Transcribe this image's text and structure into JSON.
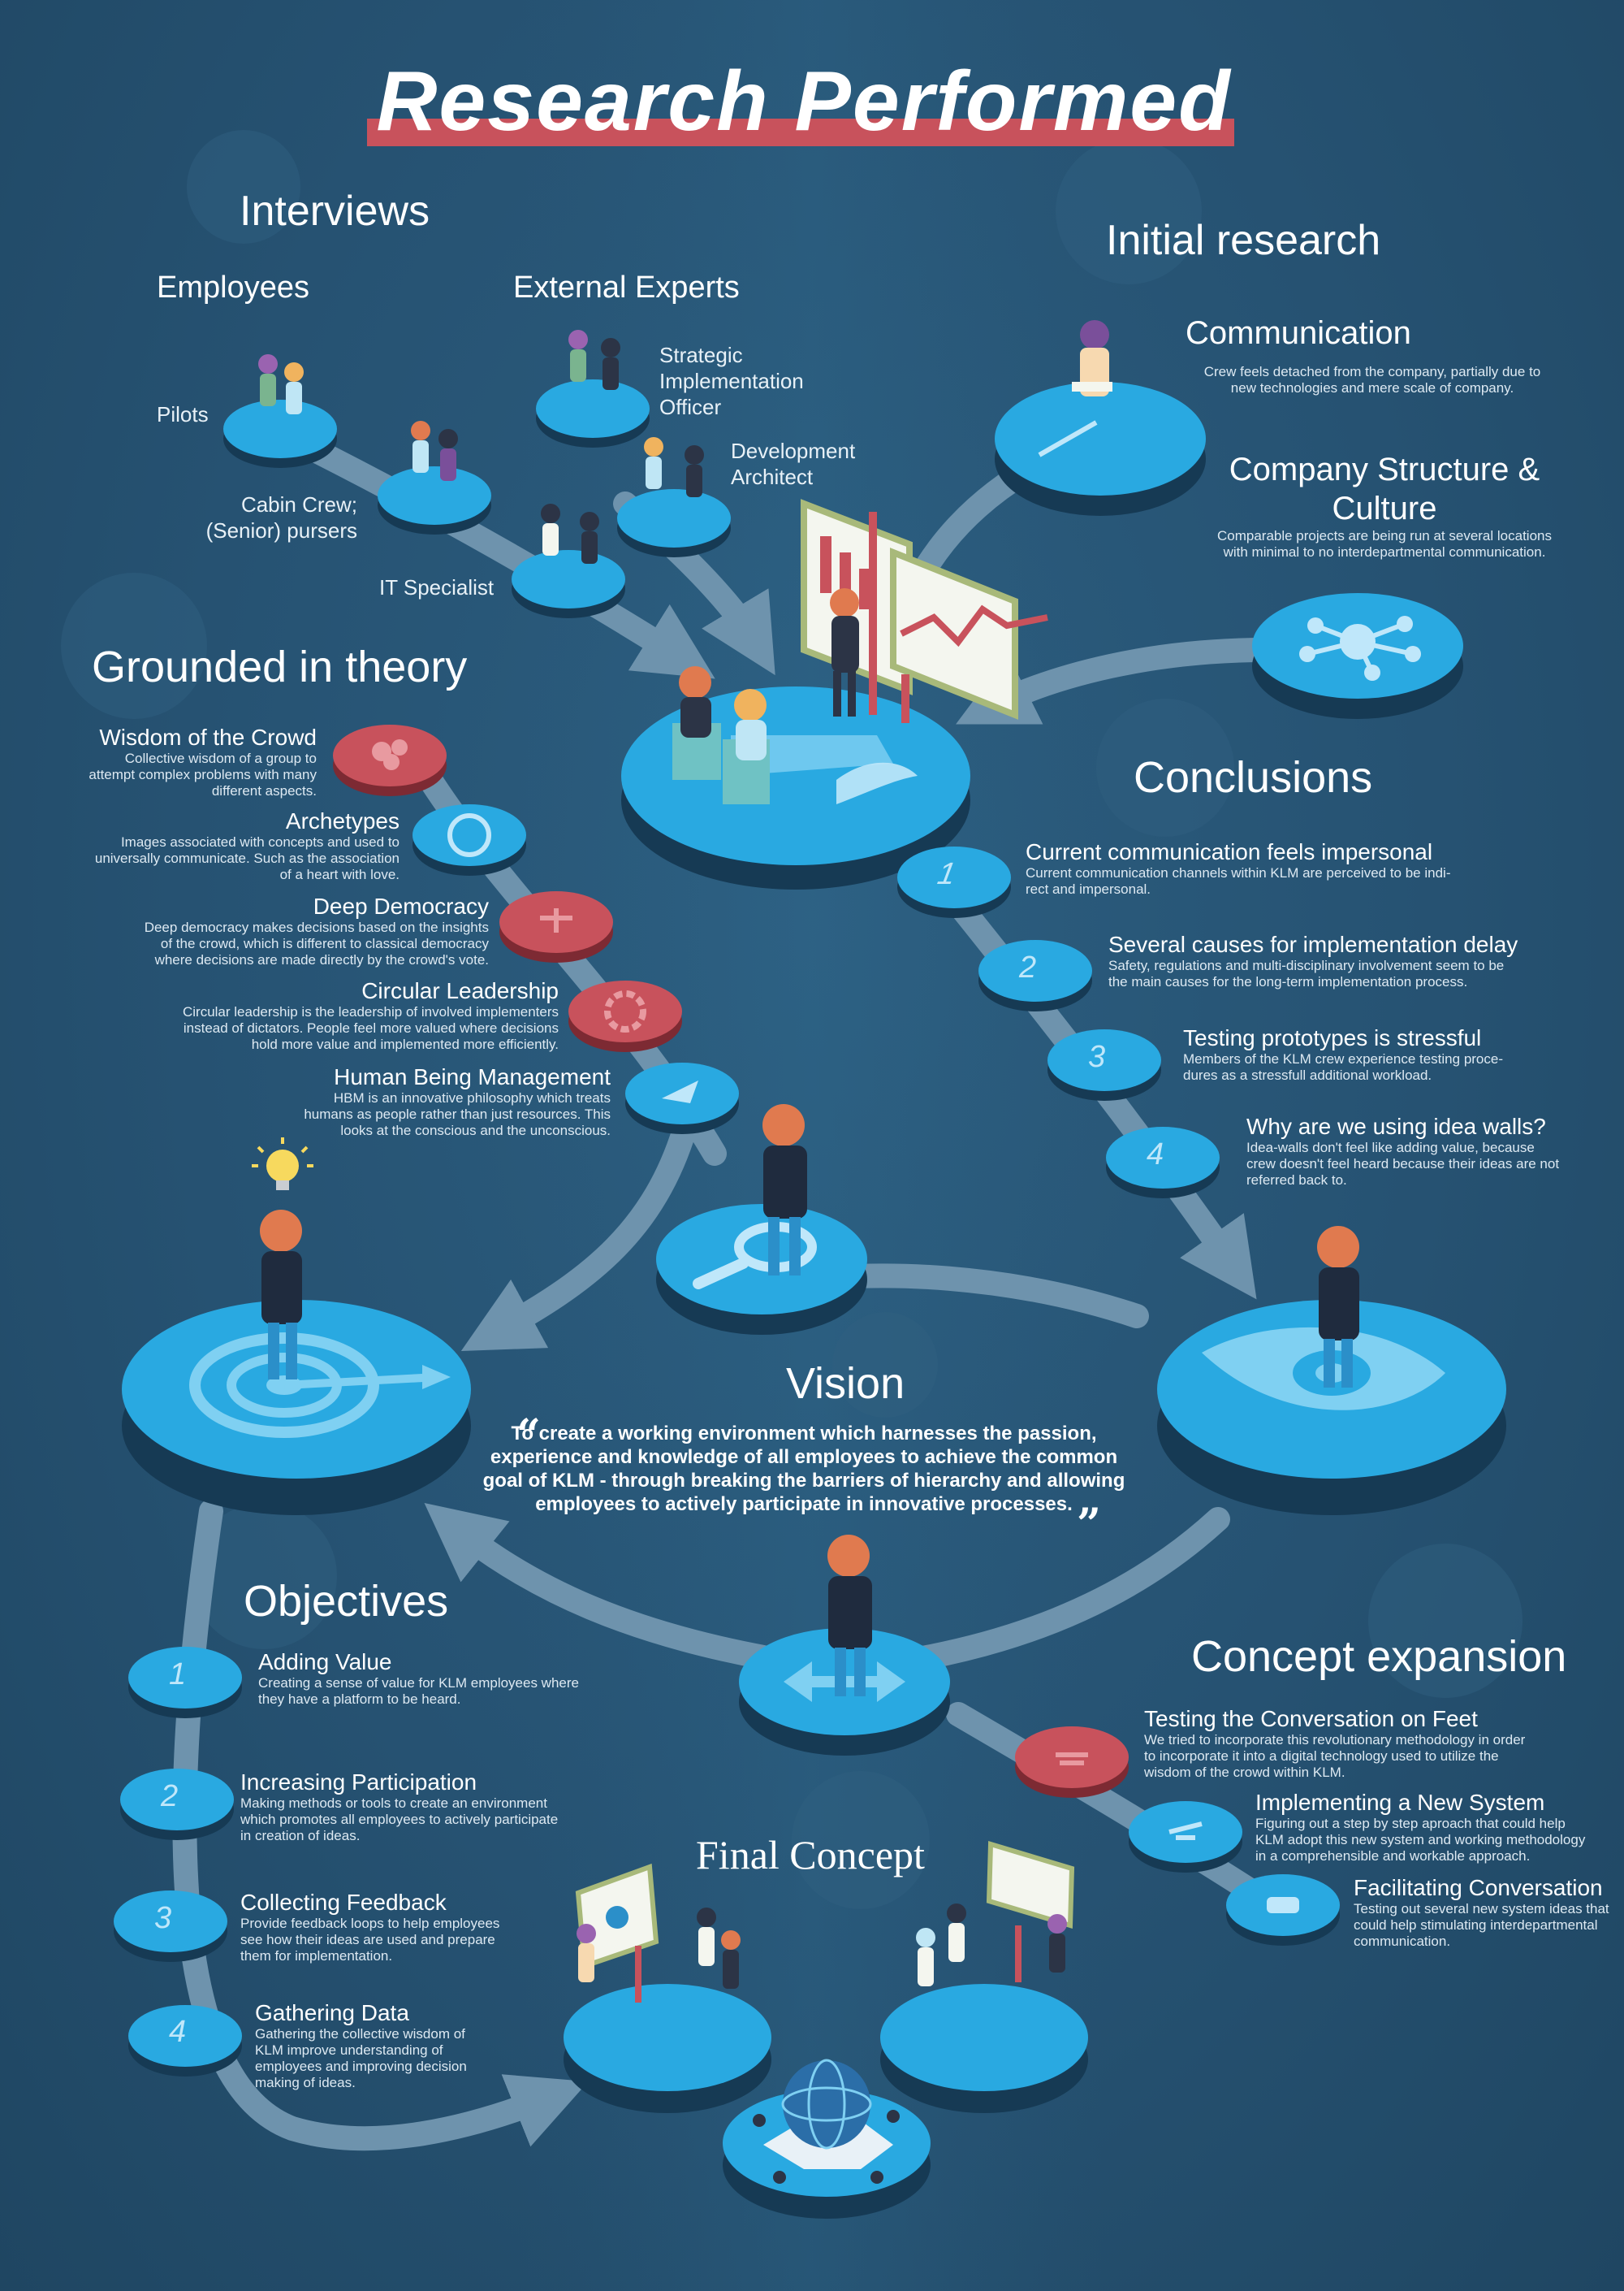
{
  "title": "Research Performed",
  "colors": {
    "background": "#275474",
    "platform": "#29a9e1",
    "platform_dark": "#1c7fb4",
    "accent_red": "#c8525c",
    "arrow": "#6e93ad"
  },
  "interviews": {
    "heading": "Interviews",
    "employees_heading": "Employees",
    "external_heading": "External Experts",
    "employees": [
      "Pilots",
      "Cabin Crew;",
      "(Senior) pursers",
      "IT Specialist"
    ],
    "external": [
      "Strategic",
      "Implementation",
      "Officer",
      "Development",
      "Architect"
    ]
  },
  "initial_research": {
    "heading": "Initial research",
    "items": [
      {
        "title": "Communication",
        "text": [
          "Crew feels detached from the company, partially due to",
          "new technologies and mere scale of company."
        ]
      },
      {
        "title": [
          "Company Structure &",
          "Culture"
        ],
        "text": [
          "Comparable projects are being run at several locations",
          "with minimal to no interdepartmental communication."
        ]
      }
    ]
  },
  "grounded": {
    "heading": "Grounded in theory",
    "items": [
      {
        "title": "Wisdom of the Crowd",
        "text": [
          "Collective wisdom of a group to",
          "attempt complex problems with many",
          "different aspects."
        ]
      },
      {
        "title": "Archetypes",
        "text": [
          "Images associated with concepts and used to",
          "universally communicate. Such as the association",
          "of a heart with love."
        ]
      },
      {
        "title": "Deep Democracy",
        "text": [
          "Deep democracy makes decisions based on the insights",
          "of the crowd, which is different to classical democracy",
          "where decisions are made directly by the crowd's vote."
        ]
      },
      {
        "title": "Circular Leadership",
        "text": [
          "Circular leadership is the leadership of involved implementers",
          "instead of dictators. People feel more valued where decisions",
          "hold more value and implemented more efficiently."
        ]
      },
      {
        "title": "Human Being Management",
        "text": [
          "HBM is an innovative philosophy which treats",
          "humans as people rather than just resources. This",
          "looks at the conscious and the unconscious."
        ]
      }
    ]
  },
  "conclusions": {
    "heading": "Conclusions",
    "items": [
      {
        "num": "1",
        "title": "Current communication feels impersonal",
        "text": [
          "Current communication channels within KLM are perceived to be indi-",
          "rect and impersonal."
        ]
      },
      {
        "num": "2",
        "title": "Several causes for implementation delay",
        "text": [
          "Safety, regulations and multi-disciplinary involvement seem to be",
          "the main causes for the long-term implementation process."
        ]
      },
      {
        "num": "3",
        "title": "Testing prototypes is stressful",
        "text": [
          "Members of the KLM crew experience testing proce-",
          "dures as a stressfull additional workload."
        ]
      },
      {
        "num": "4",
        "title": "Why are we using idea walls?",
        "text": [
          "Idea-walls don't feel like adding value, because",
          "crew doesn't feel heard because their ideas are not",
          "referred back to."
        ]
      }
    ]
  },
  "vision": {
    "heading": "Vision",
    "lines": [
      "To create a working environment which harnesses the passion,",
      "experience and knowledge of all employees to achieve the common",
      "goal of KLM - through breaking the barriers of hierarchy and allowing",
      "employees to actively participate in innovative processes."
    ],
    "open_quote": "“",
    "close_quote": "”"
  },
  "objectives": {
    "heading": "Objectives",
    "items": [
      {
        "num": "1",
        "title": "Adding Value",
        "text": [
          "Creating a sense of value for KLM employees where",
          "they have a platform to be heard."
        ]
      },
      {
        "num": "2",
        "title": "Increasing Participation",
        "text": [
          "Making methods or tools to create an environment",
          "which promotes all employees to actively participate",
          "in creation of ideas."
        ]
      },
      {
        "num": "3",
        "title": "Collecting Feedback",
        "text": [
          "Provide feedback loops to help employees",
          "see how their ideas are used and prepare",
          "them for implementation."
        ]
      },
      {
        "num": "4",
        "title": "Gathering Data",
        "text": [
          "Gathering the collective wisdom of",
          "KLM improve understanding of",
          "employees and improving decision",
          "making of ideas."
        ]
      }
    ]
  },
  "concept_expansion": {
    "heading": "Concept expansion",
    "items": [
      {
        "title": "Testing the Conversation on Feet",
        "text": [
          "We tried to incorporate this revolutionary methodology in order",
          "to incorporate it into a digital technology used to utilize the",
          "wisdom of the crowd within KLM."
        ]
      },
      {
        "title": "Implementing a New System",
        "text": [
          "Figuring out a step by step aproach that could help",
          "KLM adopt this new system and working methodology",
          "in a comprehensible and workable approach."
        ]
      },
      {
        "title": "Facilitating Conversation",
        "text": [
          "Testing out several new system ideas that",
          "could help stimulating interdepartmental",
          "communication."
        ]
      }
    ]
  },
  "final_concept": {
    "heading": "Final Concept"
  },
  "icons": [
    "target-icon",
    "magnifier-icon",
    "eye-icon",
    "arrows-icon",
    "network-icon",
    "light-bulb-icon",
    "chart-board-icon",
    "globe-icon"
  ]
}
